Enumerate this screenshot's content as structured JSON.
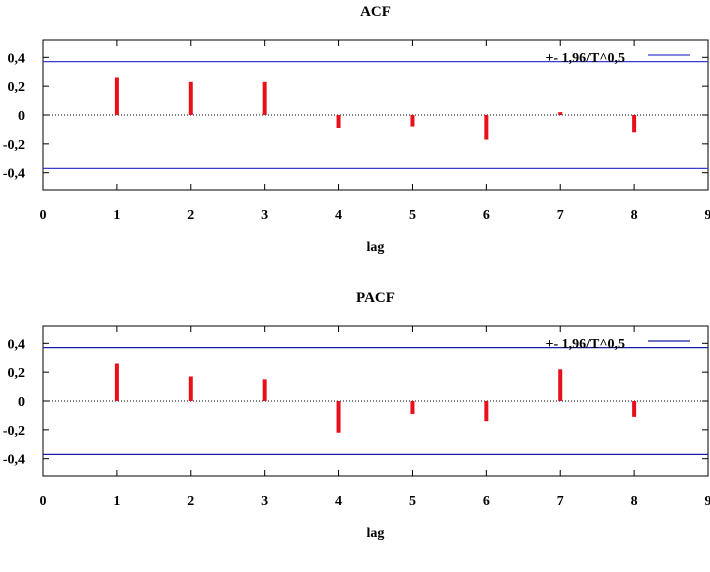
{
  "chart_data": [
    {
      "type": "bar",
      "title": "ACF",
      "xlabel": "lag",
      "xlim": [
        0,
        9
      ],
      "ylim": [
        -0.52,
        0.52
      ],
      "x_ticks": [
        "0",
        "1",
        "2",
        "3",
        "4",
        "5",
        "6",
        "7",
        "8",
        "9"
      ],
      "y_ticks": [
        "0,4",
        "0,2",
        "0",
        "-0,2",
        "-0,4"
      ],
      "y_tick_values": [
        0.4,
        0.2,
        0,
        -0.2,
        -0.4
      ],
      "series": [
        {
          "x": [
            1,
            2,
            3,
            4,
            5,
            6,
            7,
            8
          ],
          "values": [
            0.26,
            0.23,
            0.23,
            -0.09,
            -0.08,
            -0.17,
            0.02,
            -0.12
          ],
          "color": "#e8101a"
        }
      ],
      "confidence_band": {
        "label": "+- 1,96/T^0,5",
        "value": 0.37,
        "color": "#3c3ccf"
      },
      "legend_position": "top-right",
      "zero_line": "dotted"
    },
    {
      "type": "bar",
      "title": "PACF",
      "xlabel": "lag",
      "xlim": [
        0,
        9
      ],
      "ylim": [
        -0.52,
        0.52
      ],
      "x_ticks": [
        "0",
        "1",
        "2",
        "3",
        "4",
        "5",
        "6",
        "7",
        "8",
        "9"
      ],
      "y_ticks": [
        "0,4",
        "0,2",
        "0",
        "-0,2",
        "-0,4"
      ],
      "y_tick_values": [
        0.4,
        0.2,
        0,
        -0.2,
        -0.4
      ],
      "series": [
        {
          "x": [
            1,
            2,
            3,
            4,
            5,
            6,
            7,
            8
          ],
          "values": [
            0.26,
            0.17,
            0.15,
            -0.22,
            -0.09,
            -0.14,
            0.22,
            -0.11
          ],
          "color": "#e8101a"
        }
      ],
      "confidence_band": {
        "label": "+- 1,96/T^0,5",
        "value": 0.37,
        "color": "#1c1c9e"
      },
      "legend_position": "top-right",
      "zero_line": "dotted"
    }
  ]
}
